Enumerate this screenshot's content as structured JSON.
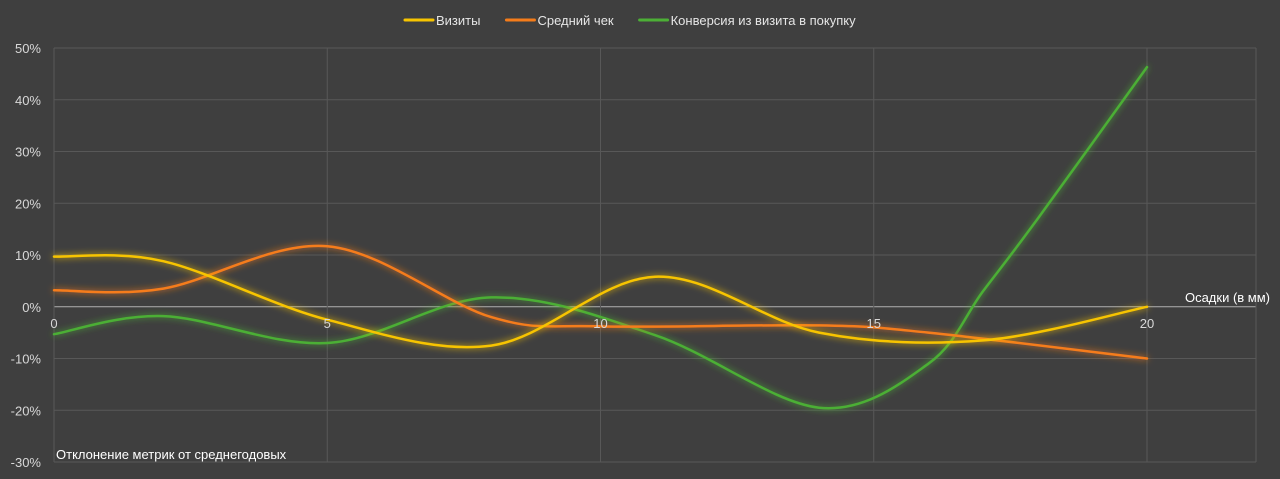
{
  "chart_data": {
    "type": "line",
    "x_title": "Осадки (в мм)",
    "y_title": "Отклонение метрик от среднегодовых",
    "xlim": [
      0,
      20
    ],
    "ylim": [
      -30,
      50
    ],
    "x_ticks": [
      0,
      5,
      10,
      15,
      20
    ],
    "x_tick_labels": [
      "0",
      "5",
      "10",
      "15",
      "20"
    ],
    "y_ticks": [
      50,
      40,
      30,
      20,
      10,
      0,
      -10,
      -20,
      -30
    ],
    "y_tick_labels": [
      "50%",
      "40%",
      "30%",
      "20%",
      "10%",
      "0%",
      "-10%",
      "-20%",
      "-30%"
    ],
    "grid": true,
    "legend_position": "top-center",
    "series": [
      {
        "name": "Визиты",
        "color": "#f7c400",
        "x": [
          0,
          2,
          5,
          8,
          11,
          14,
          17,
          20
        ],
        "y": [
          9.7,
          8.8,
          -2.5,
          -7.5,
          5.8,
          -5,
          -6.5,
          0
        ]
      },
      {
        "name": "Средний чек",
        "color": "#f57c1a",
        "x": [
          0,
          2,
          5,
          8,
          10,
          14,
          16,
          20
        ],
        "y": [
          3.2,
          3.5,
          11.7,
          -2,
          -3.8,
          -3.6,
          -5,
          -10
        ]
      },
      {
        "name": "Конверсия из визита в покупку",
        "color": "#4caf36",
        "x": [
          0,
          2,
          5,
          8,
          11,
          14,
          16,
          17,
          18,
          20
        ],
        "y": [
          -5.3,
          -1.8,
          -7,
          1.8,
          -5.5,
          -19.5,
          -11,
          3,
          17,
          46.3
        ]
      }
    ]
  }
}
